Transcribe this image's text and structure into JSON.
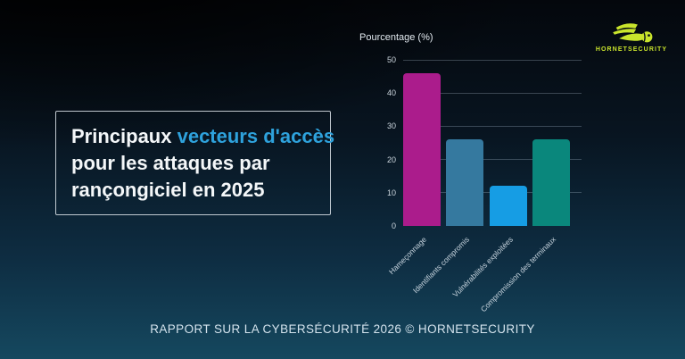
{
  "logo": {
    "brand": "HORNETSECURITY",
    "color": "#c9e42c"
  },
  "title": {
    "prefix": "Principaux ",
    "highlight": "vecteurs d'accès",
    "line2": "pour les attaques par",
    "line3": "rançongiciel en 2025",
    "highlight_color": "#2ea2dc"
  },
  "chart_data": {
    "type": "bar",
    "title": "Pourcentage (%)",
    "ylabel": "Pourcentage (%)",
    "xlabel": "",
    "categories": [
      "Hameçonnage",
      "Identifiants compromis",
      "Vulnérabilités exploitées",
      "Compromission des terminaux"
    ],
    "values": [
      46,
      26,
      12,
      26
    ],
    "bar_colors": [
      "#ab1c8c",
      "#35799f",
      "#169de4",
      "#0a877c"
    ],
    "ylim": [
      0,
      50
    ],
    "yticks": [
      0,
      10,
      20,
      30,
      40,
      50
    ],
    "grid": true,
    "legend": false,
    "category_label_rotation_deg": -45
  },
  "footer": {
    "text": "RAPPORT SUR LA CYBERSÉCURITÉ 2026 © HORNETSECURITY"
  }
}
